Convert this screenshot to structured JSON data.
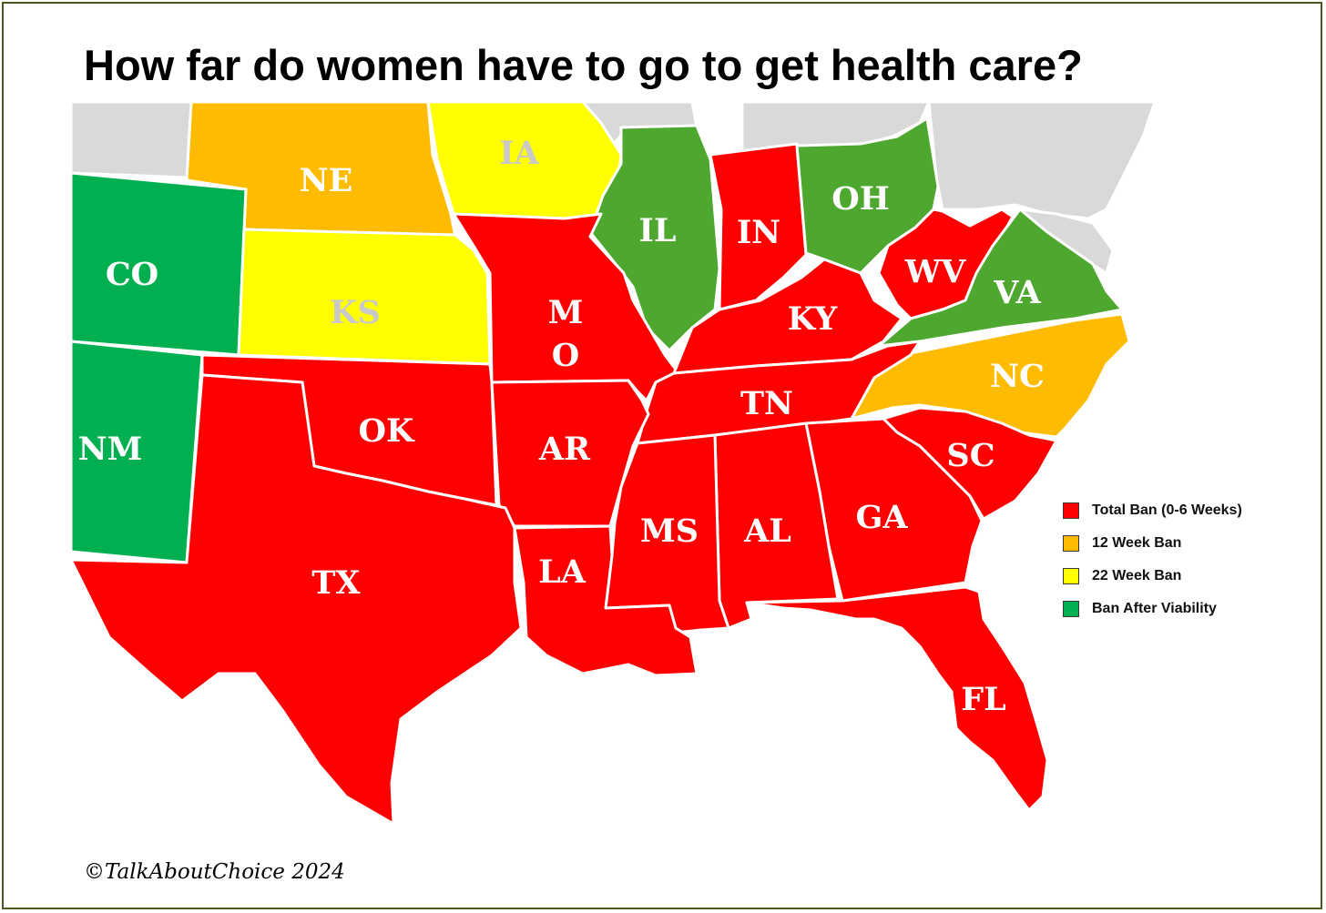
{
  "title": "How far do women have to go to get health care?",
  "credit": "©TalkAboutChoice 2024",
  "colors": {
    "total_ban": "#ff0000",
    "week12": "#ffbb00",
    "week22": "#ffff00",
    "viability": "#00b050",
    "viability_alt": "#4ea72e",
    "other": "#d9d9d9",
    "border": "#ffffff"
  },
  "legend": [
    {
      "label": "Total Ban (0-6 Weeks)",
      "color": "#ff0000"
    },
    {
      "label": "12 Week Ban",
      "color": "#ffbb00"
    },
    {
      "label": "22 Week Ban",
      "color": "#ffff00"
    },
    {
      "label": "Ban After Viability",
      "color": "#00b050"
    }
  ],
  "states": {
    "NE": {
      "label": "NE",
      "category": "12 Week Ban"
    },
    "IA": {
      "label": "IA",
      "category": "22 Week Ban"
    },
    "IL": {
      "label": "IL",
      "category": "Ban After Viability"
    },
    "IN": {
      "label": "IN",
      "category": "Total Ban (0-6 Weeks)"
    },
    "OH": {
      "label": "OH",
      "category": "Ban After Viability"
    },
    "CO": {
      "label": "CO",
      "category": "Ban After Viability"
    },
    "KS": {
      "label": "KS",
      "category": "22 Week Ban"
    },
    "MO": {
      "label": "M",
      "label2": "O",
      "category": "Total Ban (0-6 Weeks)"
    },
    "KY": {
      "label": "KY",
      "category": "Total Ban (0-6 Weeks)"
    },
    "WV": {
      "label": "WV",
      "category": "Total Ban (0-6 Weeks)"
    },
    "VA": {
      "label": "VA",
      "category": "Ban After Viability"
    },
    "NC": {
      "label": "NC",
      "category": "12 Week Ban"
    },
    "TN": {
      "label": "TN",
      "category": "Total Ban (0-6 Weeks)"
    },
    "NM": {
      "label": "NM",
      "category": "Ban After Viability"
    },
    "OK": {
      "label": "OK",
      "category": "Total Ban (0-6 Weeks)"
    },
    "AR": {
      "label": "AR",
      "category": "Total Ban (0-6 Weeks)"
    },
    "SC": {
      "label": "SC",
      "category": "Total Ban (0-6 Weeks)"
    },
    "MS": {
      "label": "MS",
      "category": "Total Ban (0-6 Weeks)"
    },
    "AL": {
      "label": "AL",
      "category": "Total Ban (0-6 Weeks)"
    },
    "GA": {
      "label": "GA",
      "category": "Total Ban (0-6 Weeks)"
    },
    "TX": {
      "label": "TX",
      "category": "Total Ban (0-6 Weeks)"
    },
    "LA": {
      "label": "LA",
      "category": "Total Ban (0-6 Weeks)"
    },
    "FL": {
      "label": "FL",
      "category": "Total Ban (0-6 Weeks)"
    }
  }
}
